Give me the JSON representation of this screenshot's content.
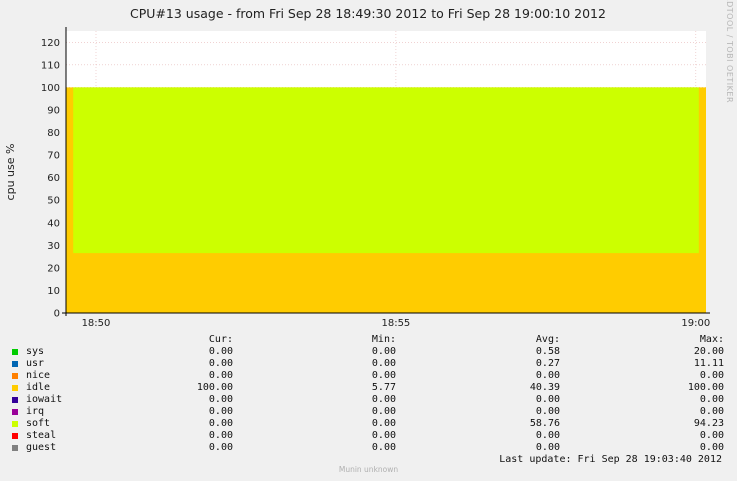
{
  "chart_data": {
    "type": "area",
    "title": "CPU#13 usage - from Fri Sep 28 18:49:30 2012 to Fri Sep 28 19:00:10 2012",
    "ylabel": "cpu use %",
    "xlabel": "",
    "ylim": [
      0,
      125
    ],
    "yticks": [
      "0",
      "10",
      "20",
      "30",
      "40",
      "50",
      "60",
      "70",
      "80",
      "90",
      "100",
      "110",
      "120"
    ],
    "xticks": [
      "18:50",
      "18:55",
      "19:00"
    ],
    "xlim_minutes": [
      0,
      10.67
    ],
    "xtick_minutes": [
      0.5,
      5.5,
      10.5
    ],
    "grid": true,
    "stack_order": [
      "sys",
      "usr",
      "nice",
      "idle",
      "iowait",
      "irq",
      "soft",
      "steal",
      "guest"
    ],
    "series": [
      {
        "name": "sys",
        "color": "#00cc00",
        "cur": "0.00",
        "min": "0.00",
        "avg": "0.58",
        "max": "20.00"
      },
      {
        "name": "usr",
        "color": "#0066b3",
        "cur": "0.00",
        "min": "0.00",
        "avg": "0.27",
        "max": "11.11"
      },
      {
        "name": "nice",
        "color": "#ff8000",
        "cur": "0.00",
        "min": "0.00",
        "avg": "0.00",
        "max": "0.00"
      },
      {
        "name": "idle",
        "color": "#ffcc00",
        "cur": "100.00",
        "min": "5.77",
        "avg": "40.39",
        "max": "100.00"
      },
      {
        "name": "iowait",
        "color": "#330099",
        "cur": "0.00",
        "min": "0.00",
        "avg": "0.00",
        "max": "0.00"
      },
      {
        "name": "irq",
        "color": "#990099",
        "cur": "0.00",
        "min": "0.00",
        "avg": "0.00",
        "max": "0.00"
      },
      {
        "name": "soft",
        "color": "#ccff00",
        "cur": "0.00",
        "min": "0.00",
        "avg": "58.76",
        "max": "94.23"
      },
      {
        "name": "steal",
        "color": "#ff0000",
        "cur": "0.00",
        "min": "0.00",
        "avg": "0.00",
        "max": "0.00"
      },
      {
        "name": "guest",
        "color": "#808080",
        "cur": "0.00",
        "min": "0.00",
        "avg": "0.00",
        "max": "0.00"
      }
    ]
  },
  "legend": {
    "headers": {
      "cur": "Cur:",
      "min": "Min:",
      "avg": "Avg:",
      "max": "Max:"
    },
    "last_update": "Last update:  Fri Sep 28 19:03:40 2012"
  },
  "watermark": "RRDTOOL / TOBI OETIKER",
  "footer": "Munin unknown"
}
